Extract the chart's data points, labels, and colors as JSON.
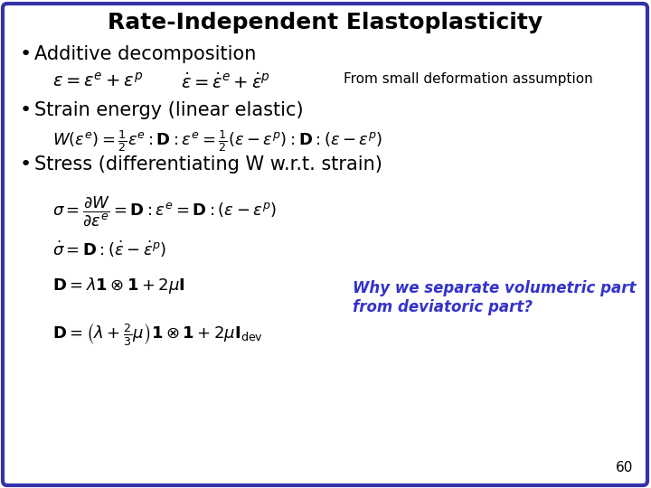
{
  "title": "Rate-Independent Elastoplasticity",
  "background_color": "#ffffff",
  "border_color": "#3333aa",
  "title_color": "#000000",
  "text_color": "#000000",
  "blue_text_color": "#3333cc",
  "page_number": "60",
  "bullet1": "Additive decomposition",
  "bullet2": "Strain energy (linear elastic)",
  "bullet3": "Stress (differentiating W w.r.t. strain)",
  "annotation1": "From small deformation assumption",
  "annotation2": "Why we separate volumetric part\nfrom deviatoric part?",
  "eq1a": "$\\varepsilon = \\varepsilon^e + \\varepsilon^p$",
  "eq1b": "$\\dot{\\varepsilon} = \\dot{\\varepsilon}^e + \\dot{\\varepsilon}^p$",
  "eq2": "$W(\\varepsilon^e) = \\frac{1}{2}\\varepsilon^e : \\mathbf{D} : \\varepsilon^e = \\frac{1}{2}(\\varepsilon - \\varepsilon^p) : \\mathbf{D} : (\\varepsilon - \\varepsilon^p)$",
  "eq3": "$\\sigma = \\dfrac{\\partial W}{\\partial \\varepsilon^e} = \\mathbf{D} : \\varepsilon^e = \\mathbf{D} : (\\varepsilon - \\varepsilon^p)$",
  "eq4": "$\\dot{\\sigma} = \\mathbf{D} : (\\dot{\\varepsilon} - \\dot{\\varepsilon}^p)$",
  "eq5": "$\\mathbf{D} = \\lambda \\mathbf{1} \\otimes \\mathbf{1} + 2\\mu \\mathbf{I}$",
  "eq6": "$\\mathbf{D} = \\left(\\lambda + \\frac{2}{3}\\mu\\right)\\mathbf{1} \\otimes \\mathbf{1} + 2\\mu \\mathbf{I}_{\\mathrm{dev}}$"
}
